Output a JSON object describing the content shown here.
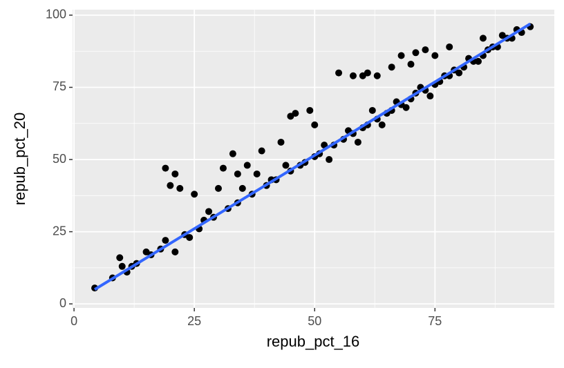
{
  "chart_data": {
    "type": "scatter",
    "x_label": "repub_pct_16",
    "y_label": "repub_pct_20",
    "xlim": [
      -0.3,
      99.8
    ],
    "ylim": [
      -1.4,
      101.9
    ],
    "xticks": [
      0,
      25,
      50,
      75
    ],
    "yticks": [
      0,
      25,
      50,
      75,
      100
    ],
    "x_minor": [
      12.5,
      37.5,
      62.5,
      87.5
    ],
    "y_minor": [
      12.5,
      37.5,
      62.5,
      87.5
    ],
    "grid": true,
    "panel_color": "#ebebeb",
    "points": {
      "color": "#000000",
      "x": [
        19,
        20,
        21,
        22,
        25,
        28,
        30,
        31,
        33,
        34,
        36,
        39,
        43,
        45,
        46,
        49,
        50,
        55,
        58,
        60,
        61,
        63,
        66,
        68,
        70,
        71,
        73,
        75,
        78,
        85,
        89,
        92,
        94.8,
        9.5,
        10,
        11,
        13,
        15,
        19,
        21,
        24,
        27,
        35,
        38,
        41,
        44,
        47,
        52,
        53,
        57,
        59,
        62,
        64,
        67,
        69,
        72,
        74,
        77,
        80,
        82,
        84,
        87,
        90,
        4.3,
        8,
        12,
        16,
        18,
        23,
        26,
        29,
        32,
        34,
        37,
        40,
        42,
        45,
        48,
        50,
        51,
        54,
        56,
        58,
        60,
        61,
        63,
        65,
        66,
        68,
        70,
        71,
        73,
        75,
        76,
        78,
        79,
        81,
        83,
        85,
        86,
        88,
        91,
        93
      ],
      "y": [
        47,
        41,
        45,
        40,
        38,
        32,
        40,
        47,
        52,
        45,
        48,
        53,
        56,
        65,
        66,
        67,
        62,
        80,
        79,
        79,
        80,
        79,
        82,
        86,
        83,
        87,
        88,
        86,
        89,
        92,
        93,
        95,
        96,
        16,
        13,
        11,
        14,
        18,
        22,
        18,
        23,
        29,
        40,
        45,
        43,
        48,
        48,
        55,
        50,
        60,
        56,
        67,
        62,
        70,
        68,
        75,
        72,
        79,
        80,
        85,
        84,
        89,
        92,
        5.5,
        9,
        13,
        17,
        19,
        24,
        26,
        30,
        33,
        35,
        38,
        41,
        43,
        46,
        49,
        51,
        52,
        55,
        57,
        59,
        61,
        62,
        64,
        66,
        67,
        69,
        71,
        73,
        74,
        76,
        77,
        79,
        81,
        82,
        84,
        86,
        88,
        89,
        92,
        94
      ]
    },
    "fit_line": {
      "color": "#3366ff",
      "x": [
        4.3,
        94.8
      ],
      "y": [
        5,
        97
      ]
    }
  }
}
